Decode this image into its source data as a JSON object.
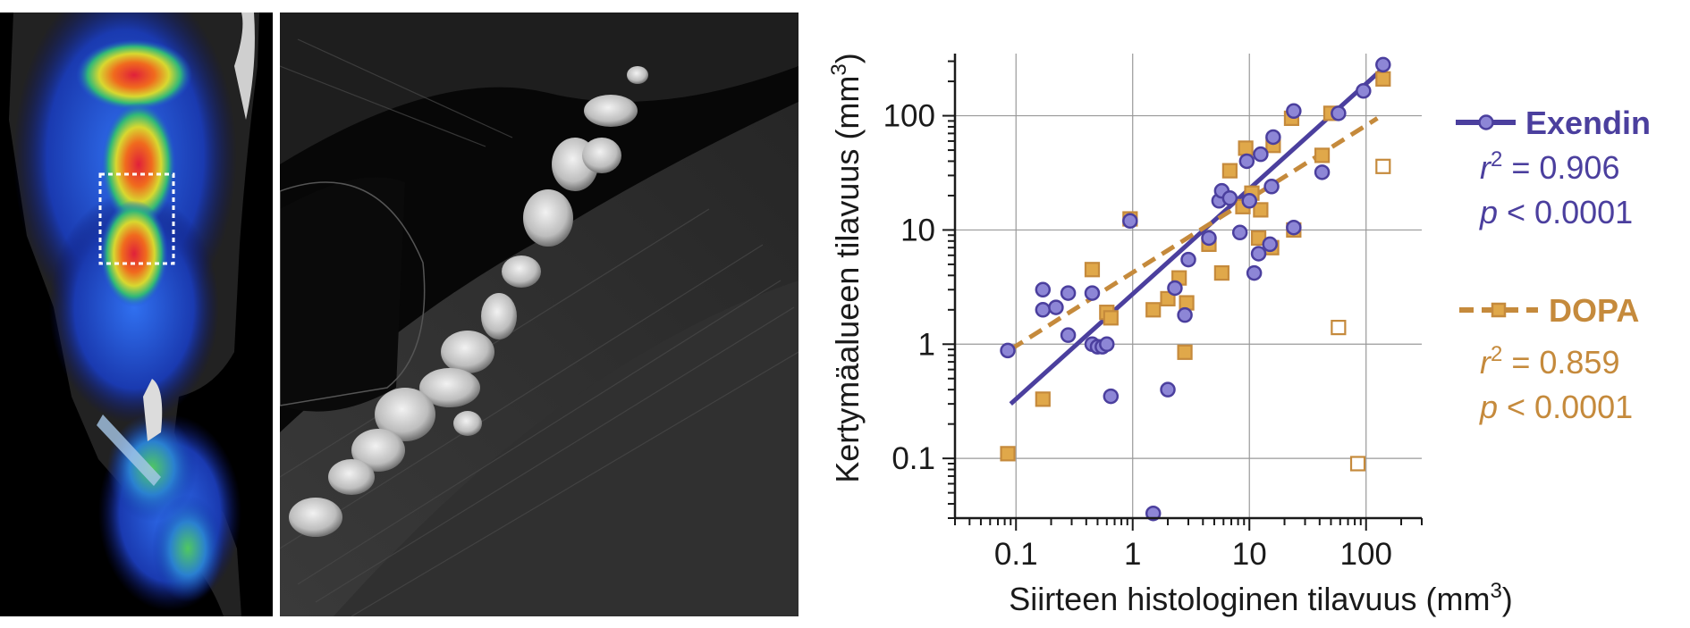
{
  "panels": {
    "pet_scan": {
      "icon": "pet-ct-scan-image",
      "roi_box": "dotted-white-roi"
    },
    "histology": {
      "icon": "histology-fluorescence-image"
    }
  },
  "colors": {
    "exendin": "#4b3f9e",
    "exendin_fill": "#8d86d6",
    "dopa": "#c58a3c",
    "dopa_fill": "#e0a84a",
    "grid": "#999999",
    "axis": "#1a1a1a"
  },
  "chart_data": {
    "type": "scatter",
    "xlabel": "Siirteen histologinen tilavuus (mm",
    "xlabel_sup": "3",
    "xlabel_end": ")",
    "ylabel": "Kertymäalueen tilavuus (mm",
    "ylabel_sup": "3",
    "ylabel_end": ")",
    "x_scale": "log",
    "y_scale": "log",
    "xlim": [
      0.03,
      300
    ],
    "ylim": [
      0.03,
      350
    ],
    "x_ticks": [
      0.1,
      1,
      10,
      100
    ],
    "x_tick_labels": [
      "0.1",
      "1",
      "10",
      "100"
    ],
    "y_ticks": [
      0.1,
      1,
      10,
      100
    ],
    "y_tick_labels": [
      "0.1",
      "1",
      "10",
      "100"
    ],
    "grid": true,
    "legend_position": "right",
    "series": [
      {
        "name": "Exendin",
        "marker": "circle",
        "r2_label": "r",
        "r2_sup": "2",
        "r2_value": " = 0.906",
        "p_label": "p",
        "p_value": " < 0.0001",
        "fit_line": "solid",
        "fit": [
          [
            0.09,
            0.3
          ],
          [
            140,
            260
          ]
        ],
        "points": [
          [
            0.085,
            0.88
          ],
          [
            0.17,
            3.0
          ],
          [
            0.17,
            2.0
          ],
          [
            0.22,
            2.1
          ],
          [
            0.28,
            2.8
          ],
          [
            0.28,
            1.2
          ],
          [
            0.45,
            2.8
          ],
          [
            0.45,
            1.0
          ],
          [
            0.5,
            0.95
          ],
          [
            0.55,
            0.95
          ],
          [
            0.6,
            1.0
          ],
          [
            0.65,
            0.35
          ],
          [
            0.95,
            12.0
          ],
          [
            1.5,
            0.033
          ],
          [
            2.0,
            0.4
          ],
          [
            2.3,
            3.1
          ],
          [
            2.8,
            1.8
          ],
          [
            3.0,
            5.5
          ],
          [
            4.5,
            8.5
          ],
          [
            5.5,
            18.0
          ],
          [
            5.8,
            22.0
          ],
          [
            6.8,
            19.0
          ],
          [
            8.3,
            9.5
          ],
          [
            9.5,
            40.0
          ],
          [
            10.0,
            18.0
          ],
          [
            11.0,
            4.2
          ],
          [
            12.5,
            46.0
          ],
          [
            12.0,
            6.2
          ],
          [
            15.0,
            7.5
          ],
          [
            15.5,
            24.0
          ],
          [
            16.0,
            65.0
          ],
          [
            24.0,
            110.0
          ],
          [
            24.0,
            10.5
          ],
          [
            42.0,
            32.0
          ],
          [
            58.0,
            105.0
          ],
          [
            95.0,
            165.0
          ],
          [
            140.0,
            280.0
          ]
        ]
      },
      {
        "name": "DOPA",
        "marker": "square",
        "r2_label": "r",
        "r2_sup": "2",
        "r2_value": " = 0.859",
        "p_label": "p",
        "p_value": " < 0.0001",
        "fit_line": "dashed",
        "fit": [
          [
            0.09,
            0.9
          ],
          [
            125,
            95
          ]
        ],
        "points": [
          [
            0.085,
            0.11
          ],
          [
            0.17,
            0.33
          ],
          [
            0.45,
            4.5
          ],
          [
            0.6,
            1.9
          ],
          [
            0.65,
            1.7
          ],
          [
            0.95,
            12.5
          ],
          [
            1.5,
            2.0
          ],
          [
            2.0,
            2.5
          ],
          [
            2.5,
            3.8
          ],
          [
            2.8,
            0.85
          ],
          [
            2.9,
            2.3
          ],
          [
            4.5,
            7.5
          ],
          [
            5.8,
            4.2
          ],
          [
            6.8,
            33.0
          ],
          [
            8.8,
            16.0
          ],
          [
            9.3,
            52.0
          ],
          [
            10.5,
            21.0
          ],
          [
            12.0,
            8.5
          ],
          [
            12.5,
            15.0
          ],
          [
            15.5,
            7.0
          ],
          [
            16.0,
            55.0
          ],
          [
            23.0,
            95.0
          ],
          [
            24.0,
            10.0
          ],
          [
            42.0,
            45.0
          ],
          [
            50.0,
            105.0
          ],
          [
            140.0,
            210.0
          ]
        ],
        "open_points": [
          [
            58.0,
            1.4
          ],
          [
            85.0,
            0.09
          ],
          [
            140.0,
            36.0
          ]
        ]
      }
    ]
  }
}
